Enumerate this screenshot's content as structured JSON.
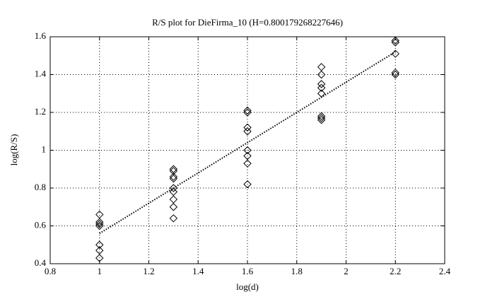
{
  "chart_data": {
    "type": "scatter",
    "title": "R/S plot for DieFirma_10 (H=0.800179268227646)",
    "x_label": "log(d)",
    "y_label": "log(R/S)",
    "x": [
      1,
      1,
      1,
      1,
      1,
      1,
      1,
      1.3,
      1.3,
      1.3,
      1.3,
      1.3,
      1.3,
      1.3,
      1.3,
      1.3,
      1.6,
      1.6,
      1.6,
      1.6,
      1.6,
      1.6,
      1.6,
      1.6,
      1.9,
      1.9,
      1.9,
      1.9,
      1.9,
      1.9,
      1.9,
      1.9,
      2.2,
      2.2,
      2.2,
      2.2,
      2.2
    ],
    "values": [
      0.66,
      0.62,
      0.61,
      0.6,
      0.5,
      0.47,
      0.43,
      0.9,
      0.89,
      0.86,
      0.85,
      0.8,
      0.78,
      0.74,
      0.7,
      0.64,
      1.21,
      1.2,
      1.12,
      1.1,
      1.0,
      0.97,
      0.93,
      0.82,
      1.44,
      1.4,
      1.35,
      1.33,
      1.3,
      1.18,
      1.17,
      1.16,
      1.58,
      1.57,
      1.51,
      1.41,
      1.4
    ],
    "color": "#000000",
    "fit_line": {
      "x": [
        1,
        2.2
      ],
      "y": [
        0.56,
        1.52
      ]
    },
    "xlim": [
      0.8,
      2.4
    ],
    "xticks": [
      0.8,
      1,
      1.2,
      1.4,
      1.6,
      1.8,
      2,
      2.2,
      2.4
    ],
    "ylim": [
      0.4,
      1.6
    ],
    "yticks": [
      0.4,
      0.6,
      0.8,
      1,
      1.2,
      1.4,
      1.6
    ],
    "grid": true
  }
}
